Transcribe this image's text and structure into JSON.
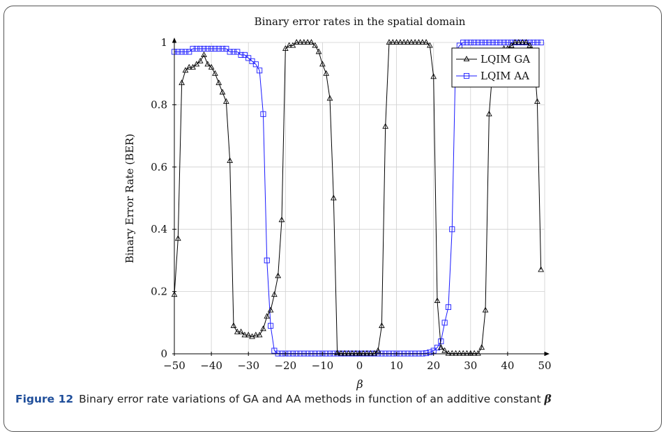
{
  "figure": {
    "caption_label": "Figure 12",
    "caption_text": "Binary error rate variations of GA and AA methods in function of an additive constant",
    "caption_symbol": "β"
  },
  "chart_data": {
    "type": "line",
    "title": "Binary error rates in the spatial domain",
    "xlabel": "β",
    "ylabel": "Binary Error Rate (BER)",
    "xlim": [
      -50,
      50
    ],
    "ylim": [
      0,
      1
    ],
    "xticks": [
      -50,
      -40,
      -30,
      -20,
      -10,
      0,
      10,
      20,
      30,
      40,
      50
    ],
    "xtick_labels": [
      "−50",
      "−40",
      "−30",
      "−20",
      "−10",
      "0",
      "10",
      "20",
      "30",
      "40",
      "50"
    ],
    "yticks": [
      0,
      0.2,
      0.4,
      0.6,
      0.8,
      1
    ],
    "ytick_labels": [
      "0",
      "0.2",
      "0.4",
      "0.6",
      "0.8",
      "1"
    ],
    "grid": true,
    "legend_position": "top-right",
    "series": [
      {
        "name": "LQIM GA",
        "color": "#000000",
        "marker": "triangle",
        "x": [
          -50,
          -49,
          -48,
          -47,
          -46,
          -45,
          -44,
          -43,
          -42,
          -41,
          -40,
          -39,
          -38,
          -37,
          -36,
          -35,
          -34,
          -33,
          -32,
          -31,
          -30,
          -29,
          -28,
          -27,
          -26,
          -25,
          -24,
          -23,
          -22,
          -21,
          -20,
          -19,
          -18,
          -17,
          -16,
          -15,
          -14,
          -13,
          -12,
          -11,
          -10,
          -9,
          -8,
          -7,
          -6,
          -5,
          -4,
          -3,
          -2,
          -1,
          0,
          1,
          2,
          3,
          4,
          5,
          6,
          7,
          8,
          9,
          10,
          11,
          12,
          13,
          14,
          15,
          16,
          17,
          18,
          19,
          20,
          21,
          22,
          23,
          24,
          25,
          26,
          27,
          28,
          29,
          30,
          31,
          32,
          33,
          34,
          35,
          36,
          37,
          38,
          39,
          40,
          41,
          42,
          43,
          44,
          45,
          46,
          47,
          48,
          49
        ],
        "y": [
          0.19,
          0.37,
          0.87,
          0.91,
          0.92,
          0.92,
          0.93,
          0.94,
          0.96,
          0.93,
          0.92,
          0.9,
          0.87,
          0.84,
          0.81,
          0.62,
          0.09,
          0.07,
          0.07,
          0.06,
          0.06,
          0.055,
          0.06,
          0.06,
          0.08,
          0.12,
          0.14,
          0.19,
          0.25,
          0.43,
          0.98,
          0.99,
          0.99,
          1.0,
          1.0,
          1.0,
          1.0,
          1.0,
          0.99,
          0.97,
          0.93,
          0.9,
          0.82,
          0.5,
          0.003,
          0.001,
          0.001,
          0.001,
          0.001,
          0.001,
          0.001,
          0.001,
          0.001,
          0.001,
          0.001,
          0.01,
          0.09,
          0.73,
          1.0,
          1.0,
          1.0,
          1.0,
          1.0,
          1.0,
          1.0,
          1.0,
          1.0,
          1.0,
          1.0,
          0.99,
          0.89,
          0.17,
          0.02,
          0.01,
          0.001,
          0.001,
          0.001,
          0.001,
          0.001,
          0.001,
          0.001,
          0.001,
          0.001,
          0.02,
          0.14,
          0.77,
          0.92,
          0.95,
          0.97,
          0.98,
          0.98,
          0.99,
          1.0,
          1.0,
          1.0,
          1.0,
          0.99,
          0.97,
          0.81,
          0.27
        ]
      },
      {
        "name": "LQIM AA",
        "color": "#1a1aff",
        "marker": "square",
        "x": [
          -50,
          -49,
          -48,
          -47,
          -46,
          -45,
          -44,
          -43,
          -42,
          -41,
          -40,
          -39,
          -38,
          -37,
          -36,
          -35,
          -34,
          -33,
          -32,
          -31,
          -30,
          -29,
          -28,
          -27,
          -26,
          -25,
          -24,
          -23,
          -22,
          -21,
          -20,
          -19,
          -18,
          -17,
          -16,
          -15,
          -14,
          -13,
          -12,
          -11,
          -10,
          -9,
          -8,
          -7,
          -6,
          -5,
          -4,
          -3,
          -2,
          -1,
          0,
          1,
          2,
          3,
          4,
          5,
          6,
          7,
          8,
          9,
          10,
          11,
          12,
          13,
          14,
          15,
          16,
          17,
          18,
          19,
          20,
          21,
          22,
          23,
          24,
          25,
          26,
          27,
          28,
          29,
          30,
          31,
          32,
          33,
          34,
          35,
          36,
          37,
          38,
          39,
          40,
          41,
          42,
          43,
          44,
          45,
          46,
          47,
          48,
          49
        ],
        "y": [
          0.97,
          0.97,
          0.97,
          0.97,
          0.97,
          0.98,
          0.98,
          0.98,
          0.98,
          0.98,
          0.98,
          0.98,
          0.98,
          0.98,
          0.98,
          0.97,
          0.97,
          0.97,
          0.96,
          0.96,
          0.95,
          0.94,
          0.93,
          0.91,
          0.77,
          0.3,
          0.09,
          0.01,
          0.001,
          0.001,
          0.001,
          0.001,
          0.001,
          0.001,
          0.001,
          0.001,
          0.001,
          0.001,
          0.001,
          0.001,
          0.001,
          0.001,
          0.001,
          0.001,
          0.001,
          0.001,
          0.001,
          0.001,
          0.001,
          0.001,
          0.001,
          0.001,
          0.001,
          0.001,
          0.001,
          0.001,
          0.001,
          0.001,
          0.001,
          0.001,
          0.001,
          0.001,
          0.001,
          0.001,
          0.001,
          0.001,
          0.001,
          0.001,
          0.002,
          0.005,
          0.01,
          0.02,
          0.04,
          0.1,
          0.15,
          0.4,
          0.97,
          0.99,
          1.0,
          1.0,
          1.0,
          1.0,
          1.0,
          1.0,
          1.0,
          1.0,
          1.0,
          1.0,
          1.0,
          1.0,
          1.0,
          1.0,
          1.0,
          1.0,
          1.0,
          1.0,
          1.0,
          1.0,
          1.0,
          1.0
        ]
      }
    ]
  }
}
